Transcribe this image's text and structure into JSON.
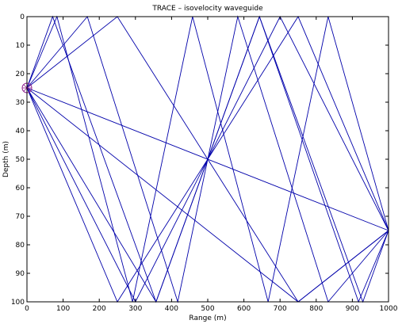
{
  "chart_data": {
    "type": "line",
    "title": "TRACE – isovelocity waveguide",
    "xlabel": "Range (m)",
    "ylabel": "Depth (m)",
    "xlim": [
      0,
      1000
    ],
    "ylim": [
      0,
      100
    ],
    "y_reversed": true,
    "xticks": [
      "0",
      "100",
      "200",
      "300",
      "400",
      "500",
      "600",
      "700",
      "800",
      "900",
      "1000"
    ],
    "yticks": [
      "0",
      "10",
      "20",
      "30",
      "40",
      "50",
      "60",
      "70",
      "80",
      "90",
      "100"
    ],
    "grid": false,
    "line_color": "#0000aa",
    "source_color": "#8b1a8b",
    "source": {
      "x": 0,
      "y": 25
    },
    "receiver": {
      "x": 1000,
      "y": 75
    },
    "rays": [
      {
        "x": [
          0,
          250,
          500,
          750,
          1000
        ],
        "y": [
          25,
          0,
          50,
          100,
          75
        ]
      },
      {
        "x": [
          0,
          750,
          1000
        ],
        "y": [
          25,
          100,
          75
        ]
      },
      {
        "x": [
          0,
          250,
          500,
          750,
          1000
        ],
        "y": [
          25,
          100,
          50,
          0,
          75
        ]
      },
      {
        "x": [
          0,
          1000
        ],
        "y": [
          25,
          75
        ]
      },
      {
        "x": [
          0,
          167,
          417,
          583,
          833,
          1000
        ],
        "y": [
          25,
          0,
          100,
          0,
          100,
          75
        ]
      },
      {
        "x": [
          0,
          83,
          292,
          458,
          667,
          833,
          1000
        ],
        "y": [
          25,
          0,
          100,
          0,
          100,
          0,
          75
        ]
      },
      {
        "x": [
          0,
          71,
          357,
          643,
          929,
          1000
        ],
        "y": [
          25,
          0,
          100,
          0,
          100,
          75
        ]
      },
      {
        "x": [
          0,
          300,
          700,
          1000
        ],
        "y": [
          25,
          100,
          0,
          75
        ]
      },
      {
        "x": [
          0,
          357,
          643,
          917,
          1000
        ],
        "y": [
          25,
          100,
          0,
          100,
          75
        ]
      }
    ]
  }
}
